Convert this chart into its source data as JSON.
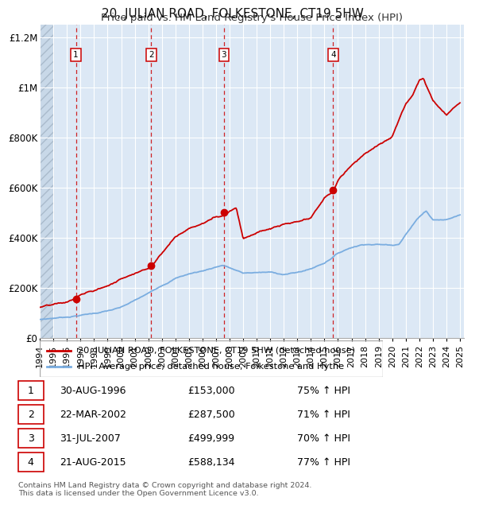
{
  "title": "20, JULIAN ROAD, FOLKESTONE, CT19 5HW",
  "subtitle": "Price paid vs. HM Land Registry's House Price Index (HPI)",
  "ylim": [
    0,
    1250000
  ],
  "yticks": [
    0,
    200000,
    400000,
    600000,
    800000,
    1000000,
    1200000
  ],
  "ytick_labels": [
    "£0",
    "£200K",
    "£400K",
    "£600K",
    "£800K",
    "£1M",
    "£1.2M"
  ],
  "sale_color": "#cc0000",
  "hpi_color": "#7aade0",
  "background_color": "#dce8f5",
  "grid_color": "#ffffff",
  "sale_dates": [
    1996.66,
    2002.22,
    2007.58,
    2015.64
  ],
  "sale_prices": [
    153000,
    287500,
    499999,
    588134
  ],
  "sale_labels": [
    "1",
    "2",
    "3",
    "4"
  ],
  "legend_sale_label": "20, JULIAN ROAD, FOLKESTONE, CT19 5HW (detached house)",
  "legend_hpi_label": "HPI: Average price, detached house, Folkestone and Hythe",
  "table_rows": [
    [
      "1",
      "30-AUG-1996",
      "£153,000",
      "75% ↑ HPI"
    ],
    [
      "2",
      "22-MAR-2002",
      "£287,500",
      "71% ↑ HPI"
    ],
    [
      "3",
      "31-JUL-2007",
      "£499,999",
      "70% ↑ HPI"
    ],
    [
      "4",
      "21-AUG-2015",
      "£588,134",
      "77% ↑ HPI"
    ]
  ],
  "footer_text": "Contains HM Land Registry data © Crown copyright and database right 2024.\nThis data is licensed under the Open Government Licence v3.0.",
  "hpi_key_x": [
    1994,
    1995,
    1996,
    1997,
    1998,
    1999,
    2000,
    2001,
    2002,
    2003,
    2004,
    2005,
    2006,
    2007,
    2007.5,
    2008,
    2009,
    2010,
    2011,
    2012,
    2013,
    2014,
    2015,
    2016,
    2017,
    2018,
    2019,
    2020,
    2020.5,
    2021,
    2022,
    2022.5,
    2023,
    2024,
    2025
  ],
  "hpi_key_y": [
    72000,
    78000,
    84000,
    92000,
    100000,
    110000,
    122000,
    148000,
    175000,
    210000,
    240000,
    258000,
    270000,
    287000,
    295000,
    285000,
    262000,
    265000,
    265000,
    258000,
    265000,
    280000,
    305000,
    345000,
    370000,
    385000,
    385000,
    382000,
    390000,
    430000,
    500000,
    525000,
    490000,
    490000,
    510000
  ],
  "red_key_x": [
    1994,
    1995,
    1996,
    1996.66,
    1997,
    1998,
    1999,
    2000,
    2001,
    2002,
    2002.22,
    2003,
    2004,
    2005,
    2006,
    2007,
    2007.58,
    2008,
    2008.5,
    2009,
    2010,
    2011,
    2012,
    2013,
    2014,
    2015,
    2015.64,
    2016,
    2017,
    2018,
    2019,
    2020,
    2021,
    2021.5,
    2022,
    2022.3,
    2023,
    2024,
    2025
  ],
  "red_key_y": [
    122000,
    128000,
    135000,
    153000,
    165000,
    180000,
    200000,
    228000,
    258000,
    278000,
    287500,
    345000,
    410000,
    445000,
    465000,
    492000,
    499999,
    520000,
    535000,
    415000,
    440000,
    455000,
    470000,
    475000,
    485000,
    565000,
    588134,
    635000,
    695000,
    748000,
    778000,
    808000,
    940000,
    975000,
    1040000,
    1050000,
    960000,
    900000,
    955000
  ]
}
